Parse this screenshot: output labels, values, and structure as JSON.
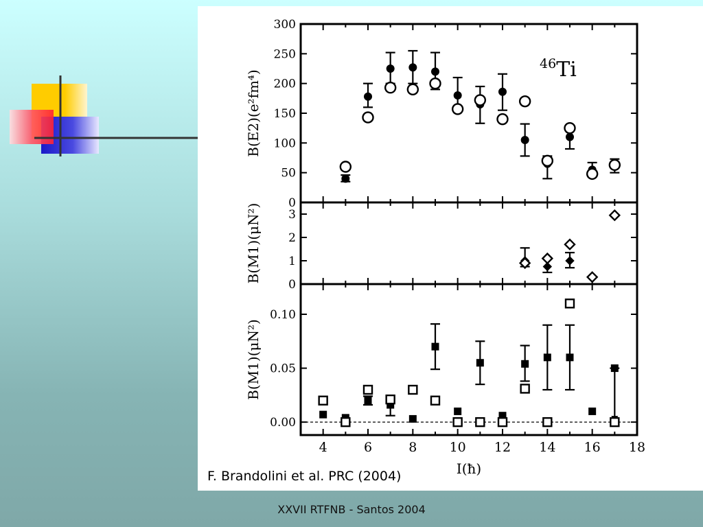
{
  "slide": {
    "footer": "XXVII RTFNB - Santos 2004",
    "citation": "F. Brandolini et al. PRC (2004)"
  },
  "colors": {
    "deco_yellow": "#ffcc00",
    "deco_red": "#ff3344",
    "deco_blue": "#2222cc",
    "deco_line": "#333333",
    "ink": "#000000"
  },
  "chart_data": [
    {
      "type": "scatter",
      "nucleus_mass": "46",
      "nucleus_symbol": "Ti",
      "ylabel": "B(E2)(e²fm⁴)",
      "ylim": [
        0,
        300
      ],
      "yticks": [
        0,
        50,
        100,
        150,
        200,
        250,
        300
      ],
      "xlim": [
        3,
        18
      ],
      "series": [
        {
          "marker": "filled-circle",
          "points": [
            {
              "x": 5,
              "y": 40,
              "lo": 35,
              "hi": 46
            },
            {
              "x": 6,
              "y": 178,
              "lo": 160,
              "hi": 200
            },
            {
              "x": 7,
              "y": 225,
              "lo": 200,
              "hi": 252
            },
            {
              "x": 8,
              "y": 227,
              "lo": 200,
              "hi": 255
            },
            {
              "x": 9,
              "y": 220,
              "lo": 190,
              "hi": 252
            },
            {
              "x": 10,
              "y": 180,
              "lo": 158,
              "hi": 210
            },
            {
              "x": 11,
              "y": 165,
              "lo": 133,
              "hi": 195
            },
            {
              "x": 12,
              "y": 186,
              "lo": 155,
              "hi": 216
            },
            {
              "x": 13,
              "y": 105,
              "lo": 78,
              "hi": 132
            },
            {
              "x": 14,
              "y": 65,
              "lo": 40,
              "hi": 78
            },
            {
              "x": 15,
              "y": 110,
              "lo": 90,
              "hi": 130
            },
            {
              "x": 16,
              "y": 55,
              "lo": 45,
              "hi": 67
            },
            {
              "x": 17,
              "y": 63,
              "lo": 50,
              "hi": 73
            }
          ]
        },
        {
          "marker": "open-circle",
          "points": [
            {
              "x": 5,
              "y": 60
            },
            {
              "x": 6,
              "y": 143
            },
            {
              "x": 7,
              "y": 193
            },
            {
              "x": 8,
              "y": 190
            },
            {
              "x": 9,
              "y": 200
            },
            {
              "x": 10,
              "y": 157
            },
            {
              "x": 11,
              "y": 172
            },
            {
              "x": 12,
              "y": 140
            },
            {
              "x": 13,
              "y": 170
            },
            {
              "x": 14,
              "y": 70
            },
            {
              "x": 15,
              "y": 125
            },
            {
              "x": 16,
              "y": 48
            },
            {
              "x": 17,
              "y": 63
            }
          ]
        }
      ]
    },
    {
      "type": "scatter",
      "ylabel": "B(M1)(μN²)",
      "ylim": [
        0,
        3.5
      ],
      "yticks": [
        0,
        1,
        2,
        3
      ],
      "xlim": [
        3,
        18
      ],
      "series": [
        {
          "marker": "filled-diamond",
          "points": [
            {
              "x": 13,
              "y": 1.0,
              "lo": 0.75,
              "hi": 1.55
            },
            {
              "x": 14,
              "y": 0.75,
              "lo": 0.5,
              "hi": 1.1
            },
            {
              "x": 15,
              "y": 1.0,
              "lo": 0.7,
              "hi": 1.35
            }
          ]
        },
        {
          "marker": "open-diamond",
          "points": [
            {
              "x": 13,
              "y": 0.9
            },
            {
              "x": 14,
              "y": 1.1
            },
            {
              "x": 15,
              "y": 1.7
            },
            {
              "x": 16,
              "y": 0.3
            },
            {
              "x": 17,
              "y": 2.95
            }
          ]
        }
      ]
    },
    {
      "type": "scatter",
      "ylabel": "B(M1)(μN²)",
      "xlabel": "I(ħ)",
      "ylim": [
        -0.012,
        0.128
      ],
      "yticks": [
        0.0,
        0.05,
        0.1
      ],
      "ytick_labels": [
        "0.00",
        "0.05",
        "0.10"
      ],
      "xlim": [
        3,
        18
      ],
      "xticks": [
        4,
        6,
        8,
        10,
        12,
        14,
        16,
        18
      ],
      "reference_line": 0.0,
      "series": [
        {
          "marker": "filled-square",
          "points": [
            {
              "x": 4,
              "y": 0.007
            },
            {
              "x": 5,
              "y": 0.004
            },
            {
              "x": 6,
              "y": 0.02,
              "lo": 0.016,
              "hi": 0.024
            },
            {
              "x": 7,
              "y": 0.016,
              "lo": 0.006,
              "hi": 0.022
            },
            {
              "x": 8,
              "y": 0.003
            },
            {
              "x": 9,
              "y": 0.07,
              "lo": 0.049,
              "hi": 0.091
            },
            {
              "x": 10,
              "y": 0.01
            },
            {
              "x": 11,
              "y": 0.055,
              "lo": 0.035,
              "hi": 0.075
            },
            {
              "x": 12,
              "y": 0.006
            },
            {
              "x": 13,
              "y": 0.054,
              "lo": 0.038,
              "hi": 0.071
            },
            {
              "x": 14,
              "y": 0.06,
              "lo": 0.03,
              "hi": 0.09
            },
            {
              "x": 15,
              "y": 0.06,
              "lo": 0.03,
              "hi": 0.09
            },
            {
              "x": 16,
              "y": 0.01
            },
            {
              "x": 17,
              "y": 0.05,
              "lo": 0.0,
              "hi": 0.05,
              "upper_limit": true
            }
          ]
        },
        {
          "marker": "open-square",
          "points": [
            {
              "x": 4,
              "y": 0.02
            },
            {
              "x": 5,
              "y": 0.0
            },
            {
              "x": 6,
              "y": 0.03
            },
            {
              "x": 7,
              "y": 0.021
            },
            {
              "x": 8,
              "y": 0.03
            },
            {
              "x": 9,
              "y": 0.02
            },
            {
              "x": 10,
              "y": 0.0
            },
            {
              "x": 11,
              "y": 0.0
            },
            {
              "x": 12,
              "y": 0.0
            },
            {
              "x": 13,
              "y": 0.031
            },
            {
              "x": 14,
              "y": 0.0
            },
            {
              "x": 15,
              "y": 0.11
            },
            {
              "x": 17,
              "y": 0.0
            }
          ]
        }
      ]
    }
  ]
}
